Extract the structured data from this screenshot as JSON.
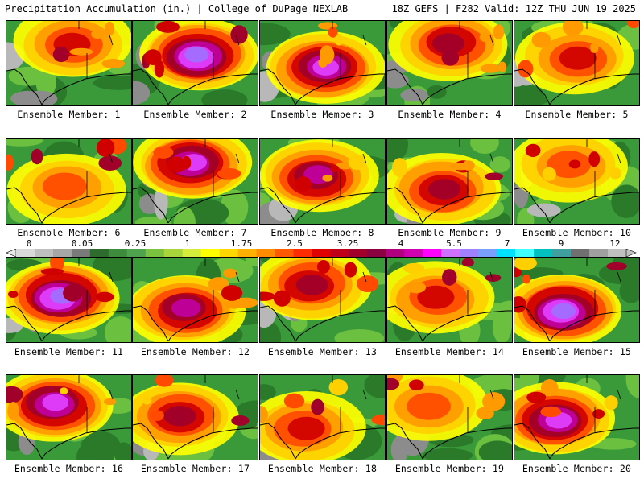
{
  "header": {
    "left": "Precipitation Accumulation (in.) | College of DuPage NEXLAB",
    "right": "18Z GEFS | F282 Valid: 12Z THU JUN 19 2025"
  },
  "colorbar": {
    "labels": [
      "0",
      "0.05",
      "0.25",
      "1",
      "1.75",
      "2.5",
      "3.25",
      "4",
      "5.5",
      "7",
      "9",
      "12"
    ],
    "colors": [
      "#d9d9d9",
      "#bfbfbf",
      "#a6a6a6",
      "#7a7a7a",
      "#2e6b2e",
      "#3d8c3d",
      "#4ea44e",
      "#7cc241",
      "#a8d63a",
      "#d6ec3a",
      "#ffff00",
      "#ffd700",
      "#ffb000",
      "#ff8c00",
      "#ff5a00",
      "#ff2a00",
      "#e00000",
      "#c00018",
      "#a0002a",
      "#8a0040",
      "#b00080",
      "#d000b0",
      "#ff00ff",
      "#d070ff",
      "#a080ff",
      "#7aa0ff",
      "#00e0ff",
      "#40ffff",
      "#00c0c0",
      "#40a0a0",
      "#707070",
      "#a0a0a0",
      "#c0c0c0"
    ]
  },
  "members": [
    {
      "label": "Ensemble Member: 1"
    },
    {
      "label": "Ensemble Member: 2"
    },
    {
      "label": "Ensemble Member: 3"
    },
    {
      "label": "Ensemble Member: 4"
    },
    {
      "label": "Ensemble Member: 5"
    },
    {
      "label": "Ensemble Member: 6"
    },
    {
      "label": "Ensemble Member: 7"
    },
    {
      "label": "Ensemble Member: 8"
    },
    {
      "label": "Ensemble Member: 9"
    },
    {
      "label": "Ensemble Member: 10"
    },
    {
      "label": "Ensemble Member: 11"
    },
    {
      "label": "Ensemble Member: 12"
    },
    {
      "label": "Ensemble Member: 13"
    },
    {
      "label": "Ensemble Member: 14"
    },
    {
      "label": "Ensemble Member: 15"
    },
    {
      "label": "Ensemble Member: 16"
    },
    {
      "label": "Ensemble Member: 17"
    },
    {
      "label": "Ensemble Member: 18"
    },
    {
      "label": "Ensemble Member: 19"
    },
    {
      "label": "Ensemble Member: 20"
    }
  ]
}
